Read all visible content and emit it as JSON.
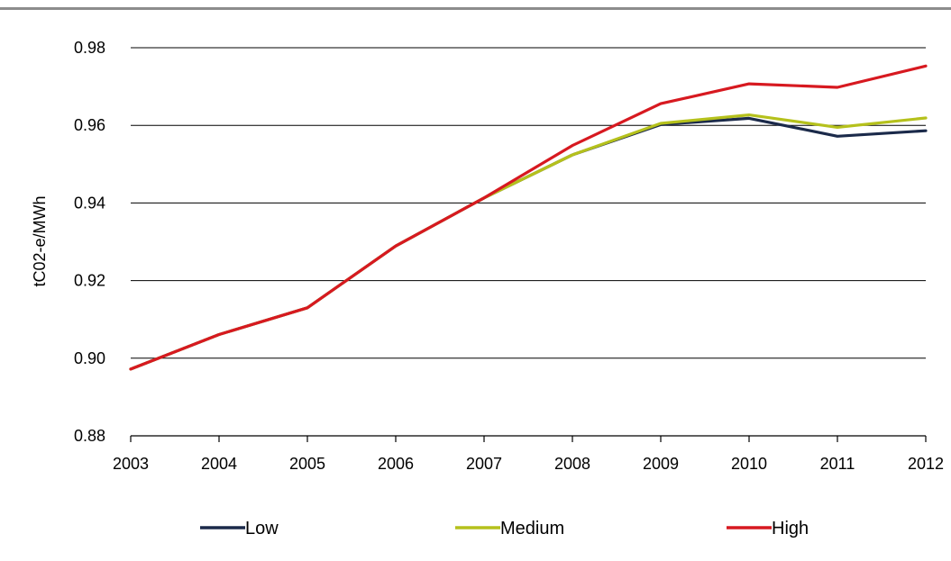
{
  "chart_data": {
    "type": "line",
    "title": "",
    "xlabel": "",
    "ylabel": "tC02-e/MWh",
    "x": [
      "2003",
      "2004",
      "2005",
      "2006",
      "2007",
      "2008",
      "2009",
      "2010",
      "2011",
      "2012"
    ],
    "ylim": [
      0.88,
      0.98
    ],
    "yticks": [
      "0.88",
      "0.90",
      "0.92",
      "0.94",
      "0.96",
      "0.98"
    ],
    "grid": true,
    "legend_position": "bottom",
    "series": [
      {
        "name": "Low",
        "color": "#1b2a4a",
        "values": [
          0.8972,
          0.9061,
          0.913,
          0.9289,
          0.9413,
          0.9524,
          0.9602,
          0.9618,
          0.9572,
          0.9586
        ]
      },
      {
        "name": "Medium",
        "color": "#b5c11c",
        "values": [
          0.8972,
          0.9061,
          0.913,
          0.9289,
          0.9413,
          0.9524,
          0.9605,
          0.9627,
          0.9595,
          0.9619
        ]
      },
      {
        "name": "High",
        "color": "#d71920",
        "values": [
          0.8972,
          0.9061,
          0.913,
          0.9289,
          0.9413,
          0.9548,
          0.9656,
          0.9707,
          0.9698,
          0.9753
        ]
      }
    ]
  }
}
